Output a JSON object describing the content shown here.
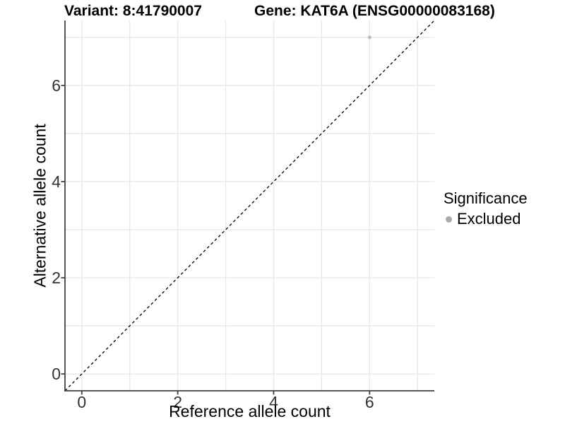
{
  "header": {
    "title_left": "Variant: 8:41790007",
    "title_right": "Gene: KAT6A (ENSG00000083168)"
  },
  "legend": {
    "title": "Significance",
    "entries": [
      {
        "label": "Excluded",
        "marker": "circle-icon",
        "color": "#a9a9a9"
      }
    ]
  },
  "colors": {
    "grid": "#e9e9e9",
    "axis": "#404040",
    "tick_label": "#333333",
    "point": "#bfbfbf",
    "legend_point": "#a9a9a9",
    "reference_line": "#000000",
    "background": "#ffffff"
  },
  "chart_data": {
    "type": "scatter",
    "title": "Variant: 8:41790007    Gene: KAT6A (ENSG00000083168)",
    "xlabel": "Reference allele count",
    "ylabel": "Alternative allele count",
    "xlim": [
      -0.35,
      7.35
    ],
    "ylim": [
      -0.35,
      7.35
    ],
    "x_ticks": [
      0,
      2,
      4,
      6
    ],
    "y_ticks": [
      0,
      2,
      4,
      6
    ],
    "x_gridlines": [
      0,
      1,
      2,
      3,
      4,
      5,
      6,
      7
    ],
    "y_gridlines": [
      0,
      1,
      2,
      3,
      4,
      5,
      6,
      7
    ],
    "grid": "on",
    "legend_position": "right",
    "series": [
      {
        "name": "Excluded",
        "color": "#bfbfbf",
        "points": [
          {
            "x": 6,
            "y": 7
          }
        ]
      }
    ],
    "reference_line": {
      "type": "identity y=x",
      "style": "dashed",
      "x1": -0.35,
      "y1": -0.35,
      "x2": 7.35,
      "y2": 7.35
    }
  }
}
